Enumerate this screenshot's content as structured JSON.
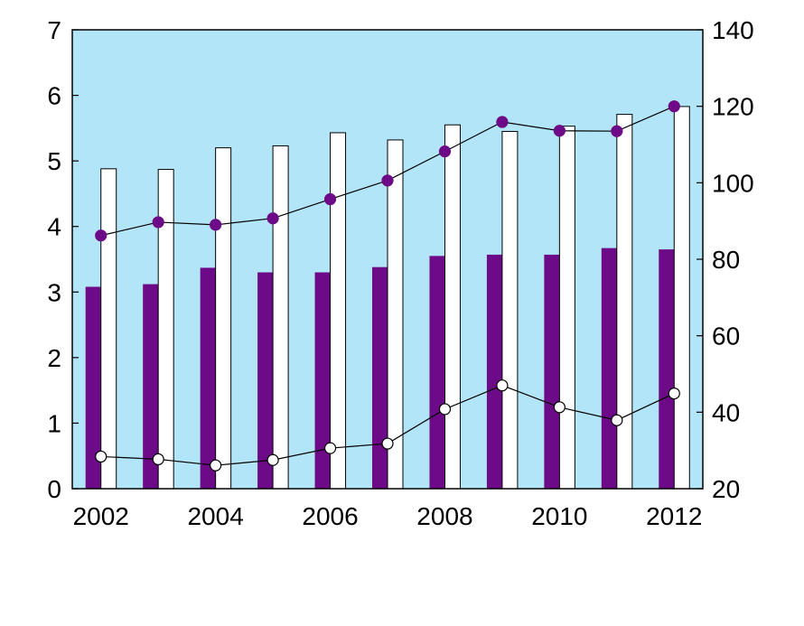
{
  "chart_data": {
    "type": "bar",
    "title": "",
    "xlabel": "",
    "ylabel_left": "",
    "ylabel_right": "",
    "x_tick_labels": [
      "2002",
      "2004",
      "2006",
      "2008",
      "2010",
      "2012"
    ],
    "categories": [
      2002,
      2003,
      2004,
      2005,
      2006,
      2007,
      2008,
      2009,
      2010,
      2011,
      2012
    ],
    "ylim_left": [
      0,
      7
    ],
    "yticks_left": [
      "0",
      "1",
      "2",
      "3",
      "4",
      "5",
      "6",
      "7"
    ],
    "ylim_right": [
      20,
      140
    ],
    "yticks_right": [
      "20",
      "40",
      "60",
      "80",
      "100",
      "120",
      "140"
    ],
    "grid": false,
    "legend": "none",
    "colors": {
      "plot_background": "#b3e5f8",
      "purple": "#6d0a87",
      "white": "#ffffff",
      "line": "#000000"
    },
    "series": [
      {
        "type": "bar",
        "axis": "left",
        "color": "#6d0a87",
        "values": [
          3.08,
          3.12,
          3.37,
          3.3,
          3.3,
          3.38,
          3.55,
          3.57,
          3.57,
          3.67,
          3.65
        ]
      },
      {
        "type": "bar",
        "axis": "left",
        "color": "#ffffff",
        "values": [
          4.88,
          4.87,
          5.2,
          5.23,
          5.43,
          5.32,
          5.55,
          5.45,
          5.53,
          5.71,
          5.83
        ]
      },
      {
        "type": "line",
        "axis": "right",
        "marker": "filled-circle",
        "color": "#6d0a87",
        "values": [
          86.2,
          89.7,
          89.0,
          90.7,
          95.7,
          100.6,
          108.2,
          115.9,
          113.6,
          113.5,
          120.0
        ]
      },
      {
        "type": "line",
        "axis": "right",
        "marker": "open-circle",
        "color": "#ffffff",
        "values": [
          28.4,
          27.7,
          26.1,
          27.5,
          30.6,
          31.8,
          40.8,
          47.0,
          41.3,
          37.9,
          44.9
        ]
      }
    ]
  }
}
